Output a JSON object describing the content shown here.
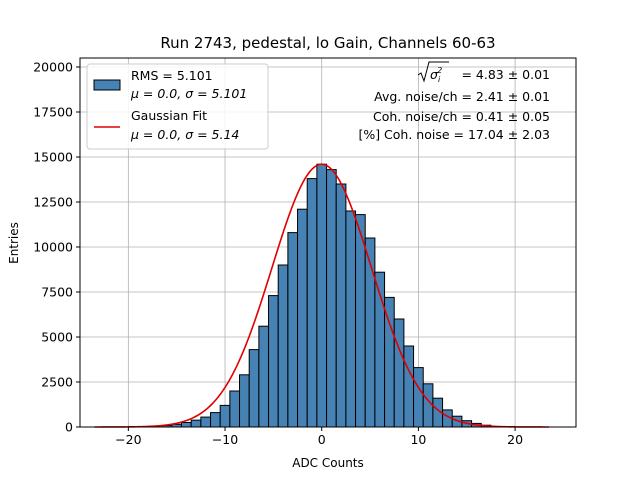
{
  "chart_data": {
    "type": "bar",
    "title": "Run 2743, pedestal, lo Gain, Channels 60-63",
    "xlabel": "ADC Counts",
    "ylabel": "Entries",
    "xlim": [
      -25.0,
      26.3
    ],
    "ylim": [
      0,
      20500
    ],
    "xticks": [
      -20,
      -10,
      0,
      10,
      20
    ],
    "yticks": [
      0,
      2500,
      5000,
      7500,
      10000,
      12500,
      15000,
      17500,
      20000
    ],
    "grid": true,
    "bin_width": 1,
    "bins": [
      {
        "x": -16,
        "y": 80
      },
      {
        "x": -15,
        "y": 150
      },
      {
        "x": -14,
        "y": 250
      },
      {
        "x": -13,
        "y": 380
      },
      {
        "x": -12,
        "y": 550
      },
      {
        "x": -11,
        "y": 800
      },
      {
        "x": -10,
        "y": 1200
      },
      {
        "x": -9,
        "y": 2000
      },
      {
        "x": -8,
        "y": 2900
      },
      {
        "x": -7,
        "y": 4300
      },
      {
        "x": -6,
        "y": 5600
      },
      {
        "x": -5,
        "y": 7300
      },
      {
        "x": -4,
        "y": 9000
      },
      {
        "x": -3,
        "y": 10800
      },
      {
        "x": -2,
        "y": 12100
      },
      {
        "x": -1,
        "y": 13800
      },
      {
        "x": 0,
        "y": 14600
      },
      {
        "x": 1,
        "y": 14300
      },
      {
        "x": 2,
        "y": 13500
      },
      {
        "x": 3,
        "y": 12000
      },
      {
        "x": 4,
        "y": 11800
      },
      {
        "x": 5,
        "y": 10500
      },
      {
        "x": 6,
        "y": 8600
      },
      {
        "x": 7,
        "y": 7200
      },
      {
        "x": 8,
        "y": 6000
      },
      {
        "x": 9,
        "y": 4500
      },
      {
        "x": 10,
        "y": 3300
      },
      {
        "x": 11,
        "y": 2400
      },
      {
        "x": 12,
        "y": 1600
      },
      {
        "x": 13,
        "y": 950
      },
      {
        "x": 14,
        "y": 600
      },
      {
        "x": 15,
        "y": 350
      },
      {
        "x": 16,
        "y": 200
      },
      {
        "x": 17,
        "y": 100
      }
    ],
    "bar_color": "#4682b4",
    "fit": {
      "name": "Gaussian Fit",
      "mu": 0.0,
      "sigma": 5.14,
      "amplitude": 14600,
      "x_range": [
        -23.5,
        23.5
      ],
      "color": "#e00000"
    },
    "legend": {
      "placement": "top-left",
      "entries": [
        {
          "line1": "RMS = 5.101",
          "line2": "μ = 0.0, σ = 5.101",
          "kind": "bar"
        },
        {
          "line1": "Gaussian Fit",
          "line2": "μ = 0.0, σ = 5.14",
          "kind": "line"
        }
      ]
    },
    "annotations": {
      "placement": "top-right",
      "sigma_value": "= 4.83 ± 0.01",
      "avg_noise": "Avg. noise/ch = 2.41 ± 0.01",
      "coh_noise": "Coh. noise/ch = 0.41 ± 0.05",
      "pct_coh_noise": "[%] Coh. noise = 17.04 ± 2.03"
    }
  }
}
